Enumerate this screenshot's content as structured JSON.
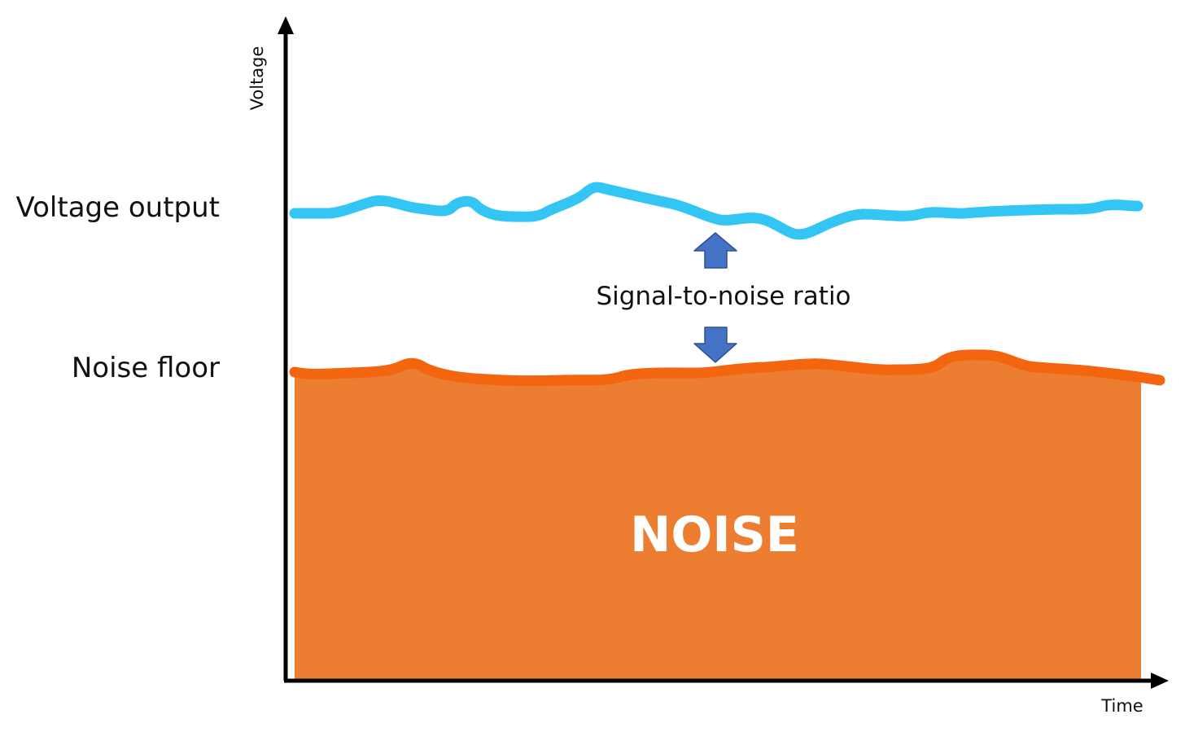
{
  "diagram": {
    "y_axis_label": "Voltage",
    "x_axis_label": "Time",
    "signal_label": "Voltage output",
    "noise_floor_label": "Noise floor",
    "snr_label": "Signal-to-noise ratio",
    "noise_region_label": "NOISE"
  },
  "colors": {
    "signal_line": "#33c6f4",
    "noise_line": "#f4650f",
    "noise_fill": "#ed7d31",
    "arrow_fill": "#4472c4",
    "arrow_stroke": "#2f528f",
    "axis": "#000000"
  },
  "icons": {
    "snr_up": "arrow-up-icon",
    "snr_down": "arrow-down-icon"
  }
}
